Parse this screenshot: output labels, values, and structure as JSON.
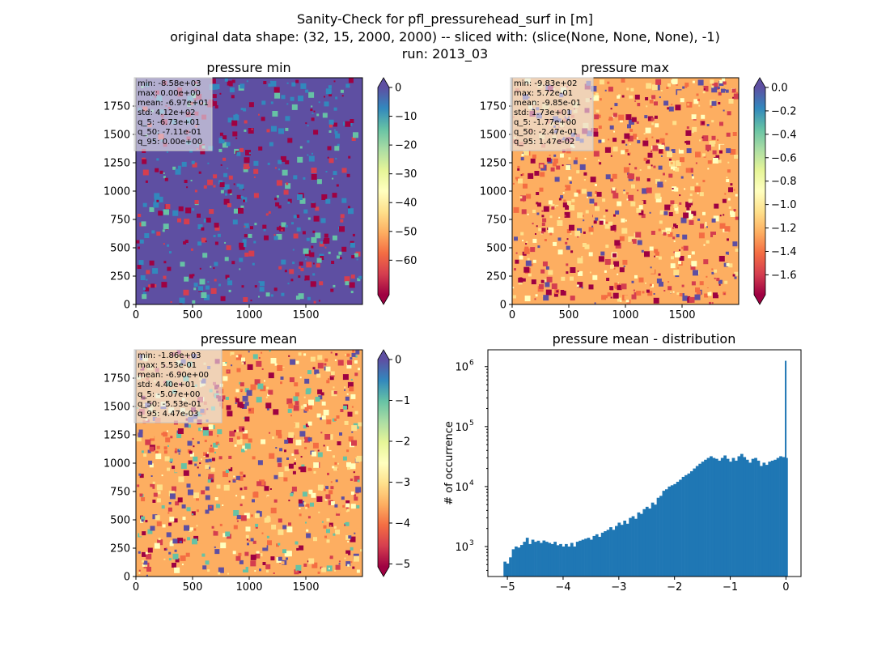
{
  "figure": {
    "title_lines": [
      "Sanity-Check for pfl_pressurehead_surf in [m]",
      "original data shape: (32, 15, 2000, 2000) -- sliced with: (slice(None, None, None), -1)",
      "run: 2013_03"
    ]
  },
  "colors": {
    "spectral": [
      "#9e0142",
      "#d53e4f",
      "#f46d43",
      "#fdae61",
      "#fee08b",
      "#ffffbf",
      "#e6f598",
      "#abdda4",
      "#66c2a5",
      "#3288bd",
      "#5e4fa2"
    ],
    "hist_bar": "#1f77b4"
  },
  "chart_data": [
    {
      "type": "heatmap",
      "title": "pressure min",
      "xlim": [
        0,
        2000
      ],
      "ylim": [
        0,
        2000
      ],
      "xticks": [
        0,
        500,
        1000,
        1500
      ],
      "yticks": [
        0,
        250,
        500,
        750,
        1000,
        1250,
        1500,
        1750
      ],
      "colorbar": {
        "vmin": -72,
        "vmax": 0,
        "ticks": [
          0,
          -10,
          -20,
          -30,
          -40,
          -50,
          -60
        ],
        "extend": "both"
      },
      "stats": [
        "min: -8.58e+03",
        "max: 0.00e+00",
        "mean: -6.97e+01",
        "std: 4.12e+02",
        "q_5: -6.73e+01",
        "q_50: -7.11e-01",
        "q_95: 0.00e+00"
      ]
    },
    {
      "type": "heatmap",
      "title": "pressure max",
      "xlim": [
        0,
        2000
      ],
      "ylim": [
        0,
        2000
      ],
      "xticks": [
        0,
        500,
        1000,
        1500
      ],
      "yticks": [
        0,
        250,
        500,
        750,
        1000,
        1250,
        1500,
        1750
      ],
      "colorbar": {
        "vmin": -1.77,
        "vmax": 0.0,
        "ticks": [
          0.0,
          -0.2,
          -0.4,
          -0.6,
          -0.8,
          -1.0,
          -1.2,
          -1.4,
          -1.6
        ],
        "tick_labels": [
          "0.0",
          "−0.2",
          "−0.4",
          "−0.6",
          "−0.8",
          "−1.0",
          "−1.2",
          "−1.4",
          "−1.6"
        ],
        "extend": "both"
      },
      "stats": [
        "min: -9.83e+02",
        "max: 5.72e-01",
        "mean: -9.85e-01",
        "std: 1.73e+01",
        "q_5: -1.77e+00",
        "q_50: -2.47e-01",
        "q_95: 1.47e-02"
      ]
    },
    {
      "type": "heatmap",
      "title": "pressure mean",
      "xlim": [
        0,
        2000
      ],
      "ylim": [
        0,
        2000
      ],
      "xticks": [
        0,
        500,
        1000,
        1500
      ],
      "yticks": [
        0,
        250,
        500,
        750,
        1000,
        1250,
        1500,
        1750
      ],
      "colorbar": {
        "vmin": -5.07,
        "vmax": 0,
        "ticks": [
          0,
          -1,
          -2,
          -3,
          -4,
          -5
        ],
        "extend": "both"
      },
      "stats": [
        "min: -1.86e+03",
        "max: 5.53e-01",
        "mean: -6.90e+00",
        "std: 4.40e+01",
        "q_5: -5.07e+00",
        "q_50: -5.53e-01",
        "q_95: 4.47e-03"
      ]
    },
    {
      "type": "bar",
      "title": "pressure mean - distribution",
      "xlabel": "",
      "ylabel": "# of occurrence",
      "xlim": [
        -5.35,
        0.27
      ],
      "ylim_log10": [
        2.5,
        6.28
      ],
      "yscale": "log",
      "xticks": [
        -5,
        -4,
        -3,
        -2,
        -1,
        0
      ],
      "yticks_exp": [
        3,
        4,
        5,
        6
      ],
      "x": [
        -5.07,
        -5.02,
        -4.97,
        -4.92,
        -4.87,
        -4.82,
        -4.77,
        -4.72,
        -4.67,
        -4.62,
        -4.57,
        -4.52,
        -4.47,
        -4.42,
        -4.37,
        -4.32,
        -4.27,
        -4.22,
        -4.17,
        -4.12,
        -4.07,
        -4.02,
        -3.97,
        -3.92,
        -3.87,
        -3.82,
        -3.77,
        -3.72,
        -3.67,
        -3.62,
        -3.57,
        -3.52,
        -3.47,
        -3.42,
        -3.37,
        -3.32,
        -3.27,
        -3.22,
        -3.17,
        -3.12,
        -3.07,
        -3.02,
        -2.97,
        -2.92,
        -2.87,
        -2.82,
        -2.77,
        -2.72,
        -2.67,
        -2.62,
        -2.57,
        -2.52,
        -2.47,
        -2.42,
        -2.37,
        -2.32,
        -2.27,
        -2.22,
        -2.17,
        -2.12,
        -2.07,
        -2.02,
        -1.97,
        -1.92,
        -1.87,
        -1.82,
        -1.77,
        -1.72,
        -1.67,
        -1.62,
        -1.57,
        -1.52,
        -1.47,
        -1.42,
        -1.37,
        -1.32,
        -1.27,
        -1.22,
        -1.17,
        -1.12,
        -1.07,
        -1.02,
        -0.97,
        -0.92,
        -0.87,
        -0.82,
        -0.77,
        -0.72,
        -0.67,
        -0.62,
        -0.57,
        -0.52,
        -0.47,
        -0.42,
        -0.37,
        -0.32,
        -0.27,
        -0.22,
        -0.17,
        -0.12,
        -0.07,
        -0.02
      ],
      "values": [
        560,
        520,
        660,
        900,
        1000,
        960,
        1060,
        1200,
        1400,
        1100,
        1300,
        1200,
        1250,
        1150,
        1260,
        1200,
        1150,
        1100,
        1200,
        1050,
        1100,
        1000,
        1100,
        1000,
        1150,
        1000,
        1200,
        1250,
        1300,
        1350,
        1400,
        1300,
        1500,
        1600,
        1450,
        1700,
        1800,
        1900,
        2100,
        1900,
        2200,
        2500,
        2300,
        2700,
        2400,
        3000,
        3200,
        2900,
        3700,
        3500,
        4200,
        4600,
        4300,
        5400,
        5000,
        6500,
        7000,
        8500,
        9000,
        10000,
        10500,
        11000,
        12000,
        13000,
        14500,
        15500,
        16500,
        18000,
        20000,
        22000,
        24000,
        26000,
        28000,
        30000,
        32000,
        30000,
        29000,
        27000,
        30000,
        33000,
        29000,
        26000,
        30000,
        27000,
        32000,
        35000,
        31000,
        28000,
        25000,
        29000,
        30000,
        27000,
        22000,
        25000,
        23000,
        26000,
        27000,
        28000,
        30000,
        32000,
        31000,
        30000
      ],
      "spike": {
        "x": -0.005,
        "value": 1250000
      }
    }
  ]
}
